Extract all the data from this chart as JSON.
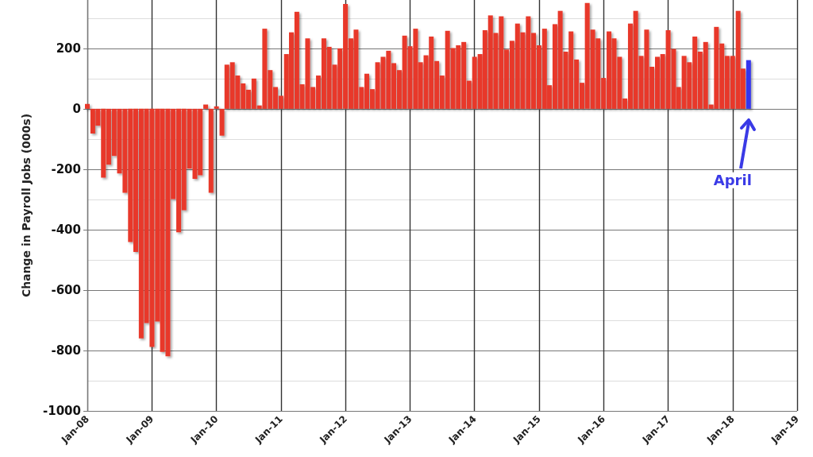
{
  "chart_data": {
    "type": "bar",
    "ylabel": "Change in Payroll Jobs (000s)",
    "x": [
      "2008-01",
      "2008-02",
      "2008-03",
      "2008-04",
      "2008-05",
      "2008-06",
      "2008-07",
      "2008-08",
      "2008-09",
      "2008-10",
      "2008-11",
      "2008-12",
      "2009-01",
      "2009-02",
      "2009-03",
      "2009-04",
      "2009-05",
      "2009-06",
      "2009-07",
      "2009-08",
      "2009-09",
      "2009-10",
      "2009-11",
      "2009-12",
      "2010-01",
      "2010-02",
      "2010-03",
      "2010-04",
      "2010-05",
      "2010-06",
      "2010-07",
      "2010-08",
      "2010-09",
      "2010-10",
      "2010-11",
      "2010-12",
      "2011-01",
      "2011-02",
      "2011-03",
      "2011-04",
      "2011-05",
      "2011-06",
      "2011-07",
      "2011-08",
      "2011-09",
      "2011-10",
      "2011-11",
      "2011-12",
      "2012-01",
      "2012-02",
      "2012-03",
      "2012-04",
      "2012-05",
      "2012-06",
      "2012-07",
      "2012-08",
      "2012-09",
      "2012-10",
      "2012-11",
      "2012-12",
      "2013-01",
      "2013-02",
      "2013-03",
      "2013-04",
      "2013-05",
      "2013-06",
      "2013-07",
      "2013-08",
      "2013-09",
      "2013-10",
      "2013-11",
      "2013-12",
      "2014-01",
      "2014-02",
      "2014-03",
      "2014-04",
      "2014-05",
      "2014-06",
      "2014-07",
      "2014-08",
      "2014-09",
      "2014-10",
      "2014-11",
      "2014-12",
      "2015-01",
      "2015-02",
      "2015-03",
      "2015-04",
      "2015-05",
      "2015-06",
      "2015-07",
      "2015-08",
      "2015-09",
      "2015-10",
      "2015-11",
      "2015-12",
      "2016-01",
      "2016-02",
      "2016-03",
      "2016-04",
      "2016-05",
      "2016-06",
      "2016-07",
      "2016-08",
      "2016-09",
      "2016-10",
      "2016-11",
      "2016-12",
      "2017-01",
      "2017-02",
      "2017-03",
      "2017-04",
      "2017-05",
      "2017-06",
      "2017-07",
      "2017-08",
      "2017-09",
      "2017-10",
      "2017-11",
      "2017-12",
      "2018-01",
      "2018-02",
      "2018-03",
      "2018-04"
    ],
    "values": [
      16,
      -82,
      -56,
      -228,
      -185,
      -156,
      -214,
      -278,
      -441,
      -474,
      -760,
      -709,
      -788,
      -704,
      -805,
      -819,
      -299,
      -409,
      -336,
      -198,
      -232,
      -220,
      14,
      -278,
      8,
      -89,
      146,
      154,
      110,
      84,
      63,
      100,
      11,
      265,
      128,
      72,
      43,
      181,
      253,
      321,
      81,
      233,
      72,
      110,
      233,
      205,
      146,
      200,
      347,
      233,
      262,
      72,
      116,
      65,
      154,
      172,
      192,
      151,
      128,
      242,
      207,
      265,
      154,
      177,
      239,
      158,
      110,
      258,
      201,
      210,
      221,
      93,
      172,
      181,
      260,
      309,
      251,
      306,
      196,
      225,
      282,
      253,
      306,
      251,
      210,
      265,
      78,
      280,
      324,
      189,
      256,
      163,
      86,
      350,
      262,
      233,
      102,
      256,
      233,
      172,
      34,
      282,
      324,
      175,
      262,
      139,
      172,
      181,
      260,
      198,
      72,
      175,
      154,
      239,
      189,
      221,
      14,
      271,
      216,
      175,
      175,
      324,
      133,
      161
    ],
    "colors": [
      "#e8382a",
      "#e8382a",
      "#e8382a",
      "#e8382a",
      "#e8382a",
      "#e8382a",
      "#e8382a",
      "#e8382a",
      "#e8382a",
      "#e8382a",
      "#e8382a",
      "#e8382a",
      "#e8382a",
      "#e8382a",
      "#e8382a",
      "#e8382a",
      "#e8382a",
      "#e8382a",
      "#e8382a",
      "#e8382a",
      "#e8382a",
      "#e8382a",
      "#e8382a",
      "#e8382a",
      "#e8382a",
      "#e8382a",
      "#e8382a",
      "#e8382a",
      "#e8382a",
      "#e8382a",
      "#e8382a",
      "#e8382a",
      "#e8382a",
      "#e8382a",
      "#e8382a",
      "#e8382a",
      "#e8382a",
      "#e8382a",
      "#e8382a",
      "#e8382a",
      "#e8382a",
      "#e8382a",
      "#e8382a",
      "#e8382a",
      "#e8382a",
      "#e8382a",
      "#e8382a",
      "#e8382a",
      "#e8382a",
      "#e8382a",
      "#e8382a",
      "#e8382a",
      "#e8382a",
      "#e8382a",
      "#e8382a",
      "#e8382a",
      "#e8382a",
      "#e8382a",
      "#e8382a",
      "#e8382a",
      "#e8382a",
      "#e8382a",
      "#e8382a",
      "#e8382a",
      "#e8382a",
      "#e8382a",
      "#e8382a",
      "#e8382a",
      "#e8382a",
      "#e8382a",
      "#e8382a",
      "#e8382a",
      "#e8382a",
      "#e8382a",
      "#e8382a",
      "#e8382a",
      "#e8382a",
      "#e8382a",
      "#e8382a",
      "#e8382a",
      "#e8382a",
      "#e8382a",
      "#e8382a",
      "#e8382a",
      "#e8382a",
      "#e8382a",
      "#e8382a",
      "#e8382a",
      "#e8382a",
      "#e8382a",
      "#e8382a",
      "#e8382a",
      "#e8382a",
      "#e8382a",
      "#e8382a",
      "#e8382a",
      "#e8382a",
      "#e8382a",
      "#e8382a",
      "#e8382a",
      "#e8382a",
      "#e8382a",
      "#e8382a",
      "#e8382a",
      "#e8382a",
      "#e8382a",
      "#e8382a",
      "#e8382a",
      "#e8382a",
      "#e8382a",
      "#e8382a",
      "#e8382a",
      "#e8382a",
      "#e8382a",
      "#e8382a",
      "#e8382a",
      "#e8382a",
      "#e8382a",
      "#e8382a",
      "#e8382a",
      "#e8382a",
      "#e8382a",
      "#e8382a",
      "#3535ee"
    ],
    "xlim": [
      "2008-01",
      "2019-01"
    ],
    "xticks": [
      {
        "value": "2008-01",
        "label": "Jan-08"
      },
      {
        "value": "2009-01",
        "label": "Jan-09"
      },
      {
        "value": "2010-01",
        "label": "Jan-10"
      },
      {
        "value": "2011-01",
        "label": "Jan-11"
      },
      {
        "value": "2012-01",
        "label": "Jan-12"
      },
      {
        "value": "2013-01",
        "label": "Jan-13"
      },
      {
        "value": "2014-01",
        "label": "Jan-14"
      },
      {
        "value": "2015-01",
        "label": "Jan-15"
      },
      {
        "value": "2016-01",
        "label": "Jan-16"
      },
      {
        "value": "2017-01",
        "label": "Jan-17"
      },
      {
        "value": "2018-01",
        "label": "Jan-18"
      },
      {
        "value": "2019-01",
        "label": "Jan-19"
      }
    ],
    "ylim": [
      -1000,
      360
    ],
    "yticks": [
      -1000,
      -800,
      -600,
      -400,
      -200,
      0,
      200
    ],
    "grid": true,
    "annotations": [
      "April"
    ]
  }
}
